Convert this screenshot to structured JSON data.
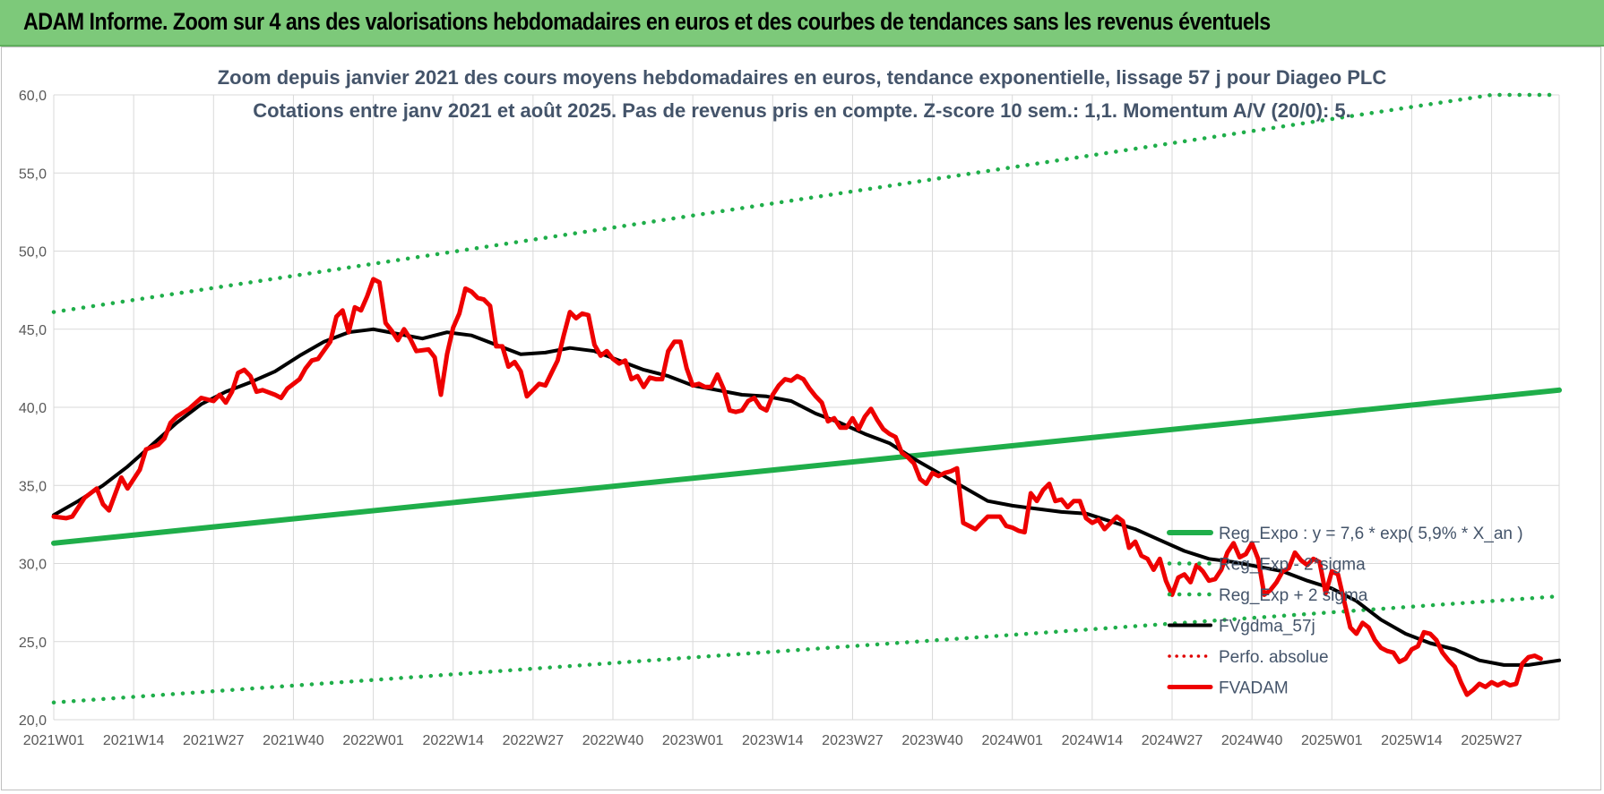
{
  "header": {
    "title": "ADAM Informe. Zoom sur 4 ans des valorisations hebdomadaires en euros et des courbes de tendances sans les revenus éventuels"
  },
  "chart_data": {
    "type": "line",
    "title": "Zoom depuis janvier 2021 des cours moyens hebdomadaires en euros, tendance exponentielle, lissage 57 j pour Diageo PLC",
    "subtitle": "Cotations entre janv 2021 et août 2025. Pas de revenus pris en compte. Z-score 10 sem.: 1,1. Momentum A/V (20/0): 5.",
    "ylim": [
      20,
      60
    ],
    "y_ticks": [
      "20,0",
      "25,0",
      "30,0",
      "35,0",
      "40,0",
      "45,0",
      "50,0",
      "55,0",
      "60,0"
    ],
    "x_ticks": [
      "2021W01",
      "2021W14",
      "2021W27",
      "2021W40",
      "2022W01",
      "2022W14",
      "2022W27",
      "2022W40",
      "2023W01",
      "2023W14",
      "2023W27",
      "2023W40",
      "2024W01",
      "2024W14",
      "2024W27",
      "2024W40",
      "2025W01",
      "2025W14",
      "2025W27"
    ],
    "x_tick_weeks": [
      0,
      13,
      26,
      39,
      52,
      65,
      78,
      91,
      104,
      117,
      130,
      143,
      156,
      169,
      182,
      195,
      208,
      221,
      234
    ],
    "x_max_week": 245,
    "grid": true,
    "legend_position": "right",
    "colors": {
      "reg_expo": "#1fae4a",
      "sigma": "#1fae4a",
      "fvgdma": "#000000",
      "perfo": "#e00000",
      "fvadam": "#ee0000"
    },
    "series": [
      {
        "name": "Reg_Expo : y = 7,6 * exp( 5,9% *  X_an )",
        "style": "solid-green",
        "points": [
          [
            0,
            31.3
          ],
          [
            245,
            41.1
          ]
        ]
      },
      {
        "name": "Reg_Exp - 2*sigma",
        "style": "dotted-green",
        "points": [
          [
            0,
            21.1
          ],
          [
            245,
            27.9
          ]
        ]
      },
      {
        "name": "Reg_Exp + 2 sigma",
        "style": "dotted-green",
        "points": [
          [
            0,
            46.1
          ],
          [
            234,
            60.0
          ],
          [
            245,
            60.0
          ]
        ]
      },
      {
        "name": "FVgdma_57j",
        "style": "solid-black",
        "points": [
          [
            0,
            33.1
          ],
          [
            4,
            34.0
          ],
          [
            8,
            35.0
          ],
          [
            12,
            36.2
          ],
          [
            16,
            37.6
          ],
          [
            20,
            39.0
          ],
          [
            24,
            40.2
          ],
          [
            28,
            41.0
          ],
          [
            32,
            41.6
          ],
          [
            36,
            42.3
          ],
          [
            40,
            43.3
          ],
          [
            44,
            44.2
          ],
          [
            48,
            44.8
          ],
          [
            52,
            45.0
          ],
          [
            56,
            44.7
          ],
          [
            60,
            44.4
          ],
          [
            64,
            44.8
          ],
          [
            68,
            44.6
          ],
          [
            72,
            44.0
          ],
          [
            76,
            43.4
          ],
          [
            80,
            43.5
          ],
          [
            84,
            43.8
          ],
          [
            88,
            43.6
          ],
          [
            92,
            43.0
          ],
          [
            96,
            42.4
          ],
          [
            100,
            42.0
          ],
          [
            104,
            41.4
          ],
          [
            108,
            41.1
          ],
          [
            112,
            40.8
          ],
          [
            116,
            40.7
          ],
          [
            120,
            40.4
          ],
          [
            124,
            39.6
          ],
          [
            128,
            39.0
          ],
          [
            132,
            38.3
          ],
          [
            136,
            37.7
          ],
          [
            140,
            36.7
          ],
          [
            144,
            35.8
          ],
          [
            148,
            34.9
          ],
          [
            152,
            34.0
          ],
          [
            156,
            33.7
          ],
          [
            160,
            33.5
          ],
          [
            164,
            33.3
          ],
          [
            168,
            33.2
          ],
          [
            172,
            32.7
          ],
          [
            176,
            32.2
          ],
          [
            180,
            31.5
          ],
          [
            184,
            30.8
          ],
          [
            188,
            30.3
          ],
          [
            192,
            30.1
          ],
          [
            196,
            29.8
          ],
          [
            200,
            29.5
          ],
          [
            204,
            28.9
          ],
          [
            208,
            28.4
          ],
          [
            212,
            27.6
          ],
          [
            216,
            26.4
          ],
          [
            220,
            25.5
          ],
          [
            224,
            24.9
          ],
          [
            228,
            24.5
          ],
          [
            232,
            23.8
          ],
          [
            236,
            23.5
          ],
          [
            240,
            23.5
          ],
          [
            245,
            23.8
          ]
        ]
      },
      {
        "name": "Perfo. absolue",
        "style": "dotted-red",
        "points": []
      },
      {
        "name": "FVADAM",
        "style": "solid-red",
        "points": [
          [
            0,
            33.0
          ],
          [
            2,
            32.9
          ],
          [
            3,
            33.0
          ],
          [
            5,
            34.2
          ],
          [
            7,
            34.8
          ],
          [
            8,
            33.8
          ],
          [
            9,
            33.4
          ],
          [
            11,
            35.5
          ],
          [
            12,
            34.8
          ],
          [
            14,
            36.0
          ],
          [
            15,
            37.3
          ],
          [
            17,
            37.6
          ],
          [
            18,
            38.0
          ],
          [
            19,
            39.0
          ],
          [
            20,
            39.4
          ],
          [
            22,
            39.9
          ],
          [
            24,
            40.6
          ],
          [
            26,
            40.4
          ],
          [
            27,
            40.8
          ],
          [
            28,
            40.3
          ],
          [
            29,
            41.0
          ],
          [
            30,
            42.2
          ],
          [
            31,
            42.4
          ],
          [
            32,
            42.0
          ],
          [
            33,
            41.0
          ],
          [
            34,
            41.1
          ],
          [
            36,
            40.8
          ],
          [
            37,
            40.6
          ],
          [
            38,
            41.2
          ],
          [
            40,
            41.8
          ],
          [
            41,
            42.5
          ],
          [
            42,
            43.0
          ],
          [
            43,
            43.1
          ],
          [
            45,
            44.2
          ],
          [
            46,
            45.8
          ],
          [
            47,
            46.2
          ],
          [
            48,
            44.8
          ],
          [
            49,
            46.4
          ],
          [
            50,
            46.2
          ],
          [
            51,
            47.1
          ],
          [
            52,
            48.2
          ],
          [
            53,
            48.0
          ],
          [
            54,
            45.4
          ],
          [
            55,
            44.9
          ],
          [
            56,
            44.3
          ],
          [
            57,
            45.0
          ],
          [
            58,
            44.4
          ],
          [
            59,
            43.6
          ],
          [
            61,
            43.7
          ],
          [
            62,
            43.2
          ],
          [
            63,
            40.8
          ],
          [
            64,
            43.4
          ],
          [
            65,
            45.1
          ],
          [
            66,
            46.0
          ],
          [
            67,
            47.6
          ],
          [
            68,
            47.4
          ],
          [
            69,
            47.0
          ],
          [
            70,
            46.9
          ],
          [
            71,
            46.5
          ],
          [
            72,
            43.9
          ],
          [
            73,
            43.9
          ],
          [
            74,
            42.6
          ],
          [
            75,
            42.9
          ],
          [
            76,
            42.3
          ],
          [
            77,
            40.7
          ],
          [
            78,
            41.1
          ],
          [
            79,
            41.5
          ],
          [
            80,
            41.4
          ],
          [
            81,
            42.2
          ],
          [
            82,
            43.0
          ],
          [
            83,
            44.6
          ],
          [
            84,
            46.1
          ],
          [
            85,
            45.7
          ],
          [
            86,
            46.0
          ],
          [
            87,
            45.9
          ],
          [
            88,
            44.0
          ],
          [
            89,
            43.3
          ],
          [
            90,
            43.6
          ],
          [
            91,
            43.1
          ],
          [
            92,
            42.8
          ],
          [
            93,
            43.0
          ],
          [
            94,
            41.8
          ],
          [
            95,
            42.0
          ],
          [
            96,
            41.3
          ],
          [
            97,
            41.9
          ],
          [
            98,
            41.8
          ],
          [
            99,
            41.8
          ],
          [
            100,
            43.6
          ],
          [
            101,
            44.2
          ],
          [
            102,
            44.2
          ],
          [
            103,
            42.5
          ],
          [
            104,
            41.4
          ],
          [
            105,
            41.5
          ],
          [
            106,
            41.3
          ],
          [
            107,
            41.3
          ],
          [
            108,
            42.1
          ],
          [
            109,
            41.2
          ],
          [
            110,
            39.8
          ],
          [
            111,
            39.7
          ],
          [
            112,
            39.8
          ],
          [
            113,
            40.4
          ],
          [
            114,
            40.6
          ],
          [
            115,
            40.0
          ],
          [
            116,
            39.8
          ],
          [
            117,
            40.8
          ],
          [
            118,
            41.4
          ],
          [
            119,
            41.8
          ],
          [
            120,
            41.7
          ],
          [
            121,
            42.0
          ],
          [
            122,
            41.8
          ],
          [
            123,
            41.2
          ],
          [
            124,
            40.7
          ],
          [
            125,
            40.3
          ],
          [
            126,
            39.1
          ],
          [
            127,
            39.3
          ],
          [
            128,
            38.7
          ],
          [
            129,
            38.7
          ],
          [
            130,
            39.3
          ],
          [
            131,
            38.6
          ],
          [
            132,
            39.4
          ],
          [
            133,
            39.9
          ],
          [
            134,
            39.2
          ],
          [
            135,
            38.6
          ],
          [
            136,
            38.3
          ],
          [
            137,
            38.1
          ],
          [
            138,
            37.1
          ],
          [
            139,
            36.8
          ],
          [
            140,
            36.4
          ],
          [
            141,
            35.4
          ],
          [
            142,
            35.1
          ],
          [
            143,
            35.8
          ],
          [
            144,
            35.6
          ],
          [
            145,
            35.8
          ],
          [
            146,
            35.9
          ],
          [
            147,
            36.1
          ],
          [
            148,
            32.6
          ],
          [
            149,
            32.4
          ],
          [
            150,
            32.2
          ],
          [
            151,
            32.6
          ],
          [
            152,
            33.0
          ],
          [
            153,
            33.0
          ],
          [
            154,
            33.0
          ],
          [
            155,
            32.4
          ],
          [
            156,
            32.3
          ],
          [
            157,
            32.1
          ],
          [
            158,
            32.0
          ],
          [
            159,
            34.5
          ],
          [
            160,
            34.0
          ],
          [
            161,
            34.7
          ],
          [
            162,
            35.1
          ],
          [
            163,
            34.0
          ],
          [
            164,
            34.1
          ],
          [
            165,
            33.6
          ],
          [
            166,
            34.0
          ],
          [
            167,
            34.0
          ],
          [
            168,
            32.9
          ],
          [
            169,
            32.6
          ],
          [
            170,
            32.8
          ],
          [
            171,
            32.2
          ],
          [
            172,
            32.6
          ],
          [
            173,
            33.0
          ],
          [
            174,
            32.7
          ],
          [
            175,
            31.0
          ],
          [
            176,
            31.4
          ],
          [
            177,
            30.5
          ],
          [
            178,
            30.3
          ],
          [
            179,
            29.6
          ],
          [
            180,
            30.3
          ],
          [
            181,
            28.9
          ],
          [
            182,
            28.0
          ],
          [
            183,
            29.1
          ],
          [
            184,
            29.3
          ],
          [
            185,
            28.8
          ],
          [
            186,
            29.9
          ],
          [
            187,
            29.5
          ],
          [
            188,
            28.9
          ],
          [
            189,
            29.0
          ],
          [
            190,
            29.6
          ],
          [
            191,
            30.7
          ],
          [
            192,
            31.3
          ],
          [
            193,
            30.4
          ],
          [
            194,
            30.6
          ],
          [
            195,
            31.3
          ],
          [
            196,
            30.3
          ],
          [
            197,
            28.0
          ],
          [
            198,
            28.3
          ],
          [
            199,
            28.8
          ],
          [
            200,
            29.5
          ],
          [
            201,
            29.7
          ],
          [
            202,
            30.7
          ],
          [
            203,
            30.2
          ],
          [
            204,
            29.9
          ],
          [
            205,
            30.3
          ],
          [
            206,
            30.1
          ],
          [
            207,
            28.1
          ],
          [
            208,
            29.5
          ],
          [
            209,
            29.3
          ],
          [
            210,
            27.6
          ],
          [
            211,
            25.9
          ],
          [
            212,
            25.5
          ],
          [
            213,
            26.2
          ],
          [
            214,
            25.9
          ],
          [
            215,
            25.1
          ],
          [
            216,
            24.6
          ],
          [
            217,
            24.4
          ],
          [
            218,
            24.3
          ],
          [
            219,
            23.7
          ],
          [
            220,
            23.9
          ],
          [
            221,
            24.5
          ],
          [
            222,
            24.7
          ],
          [
            223,
            25.6
          ],
          [
            224,
            25.5
          ],
          [
            225,
            25.1
          ],
          [
            226,
            24.3
          ],
          [
            227,
            23.8
          ],
          [
            228,
            23.4
          ],
          [
            229,
            22.4
          ],
          [
            230,
            21.6
          ],
          [
            231,
            21.9
          ],
          [
            232,
            22.3
          ],
          [
            233,
            22.1
          ],
          [
            234,
            22.4
          ],
          [
            235,
            22.2
          ],
          [
            236,
            22.4
          ],
          [
            237,
            22.2
          ],
          [
            238,
            22.3
          ],
          [
            239,
            23.6
          ],
          [
            240,
            24.0
          ],
          [
            241,
            24.1
          ],
          [
            242,
            23.9
          ]
        ]
      }
    ]
  }
}
